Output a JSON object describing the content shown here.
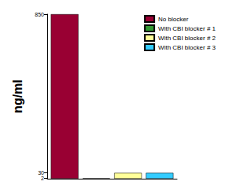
{
  "chart_data": {
    "type": "bar",
    "ylabel": "ng/ml",
    "categories": [
      null
    ],
    "series": [
      {
        "name": "No blocker",
        "color": "#990033",
        "values": [
          850
        ]
      },
      {
        "name": "With CBI blocker # 1",
        "color": "#339933",
        "values": [
          2
        ]
      },
      {
        "name": "With CBI blocker # 2",
        "color": "#ffff99",
        "values": [
          30
        ]
      },
      {
        "name": "With CBI blocker # 3",
        "color": "#33ccff",
        "values": [
          30
        ]
      }
    ],
    "ylim": [
      0,
      850
    ],
    "yticks": [
      2,
      30,
      850
    ],
    "legend": "top-right",
    "grid": false
  }
}
